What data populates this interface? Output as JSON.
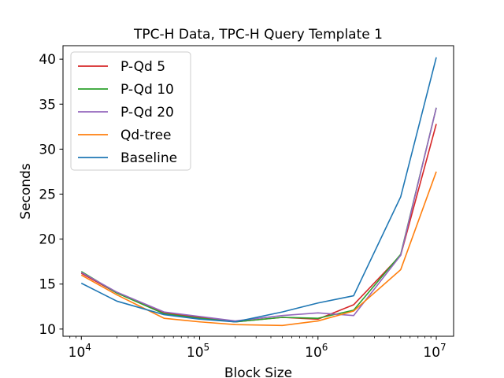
{
  "chart_data": {
    "type": "line",
    "title": "TPC-H Data, TPC-H Query Template 1",
    "xlabel": "Block Size",
    "ylabel": "Seconds",
    "x_scale": "log",
    "xlim": [
      7000,
      14000000
    ],
    "ylim": [
      9.2,
      41.5
    ],
    "grid": false,
    "legend_position": "top-left",
    "x": [
      10000,
      20000,
      50000,
      100000,
      200000,
      500000,
      1000000,
      2000000,
      5000000,
      10000000
    ],
    "x_ticks": [
      {
        "value": 10000,
        "base": "10",
        "exp": "4"
      },
      {
        "value": 100000,
        "base": "10",
        "exp": "5"
      },
      {
        "value": 1000000,
        "base": "10",
        "exp": "6"
      },
      {
        "value": 10000000,
        "base": "10",
        "exp": "7"
      }
    ],
    "y_ticks": [
      10,
      15,
      20,
      25,
      30,
      35,
      40
    ],
    "series": [
      {
        "name": "P-Qd 5",
        "color": "#d62728",
        "values": [
          16.2,
          14.0,
          11.8,
          11.3,
          10.8,
          11.3,
          11.1,
          12.7,
          18.2,
          32.8
        ]
      },
      {
        "name": "P-Qd 10",
        "color": "#2ca02c",
        "values": [
          16.4,
          14.0,
          11.7,
          11.2,
          10.8,
          11.3,
          11.2,
          12.1,
          18.3,
          34.6
        ]
      },
      {
        "name": "P-Qd 20",
        "color": "#9467bd",
        "values": [
          16.3,
          14.1,
          11.9,
          11.4,
          10.9,
          11.5,
          11.8,
          11.5,
          18.2,
          34.6
        ]
      },
      {
        "name": "Qd-tree",
        "color": "#ff7f0e",
        "values": [
          16.0,
          13.8,
          11.2,
          10.8,
          10.5,
          10.4,
          10.9,
          12.0,
          16.6,
          27.5
        ]
      },
      {
        "name": "Baseline",
        "color": "#1f77b4",
        "values": [
          15.1,
          13.1,
          11.6,
          11.1,
          10.8,
          11.9,
          12.9,
          13.7,
          24.7,
          40.2
        ]
      }
    ]
  }
}
